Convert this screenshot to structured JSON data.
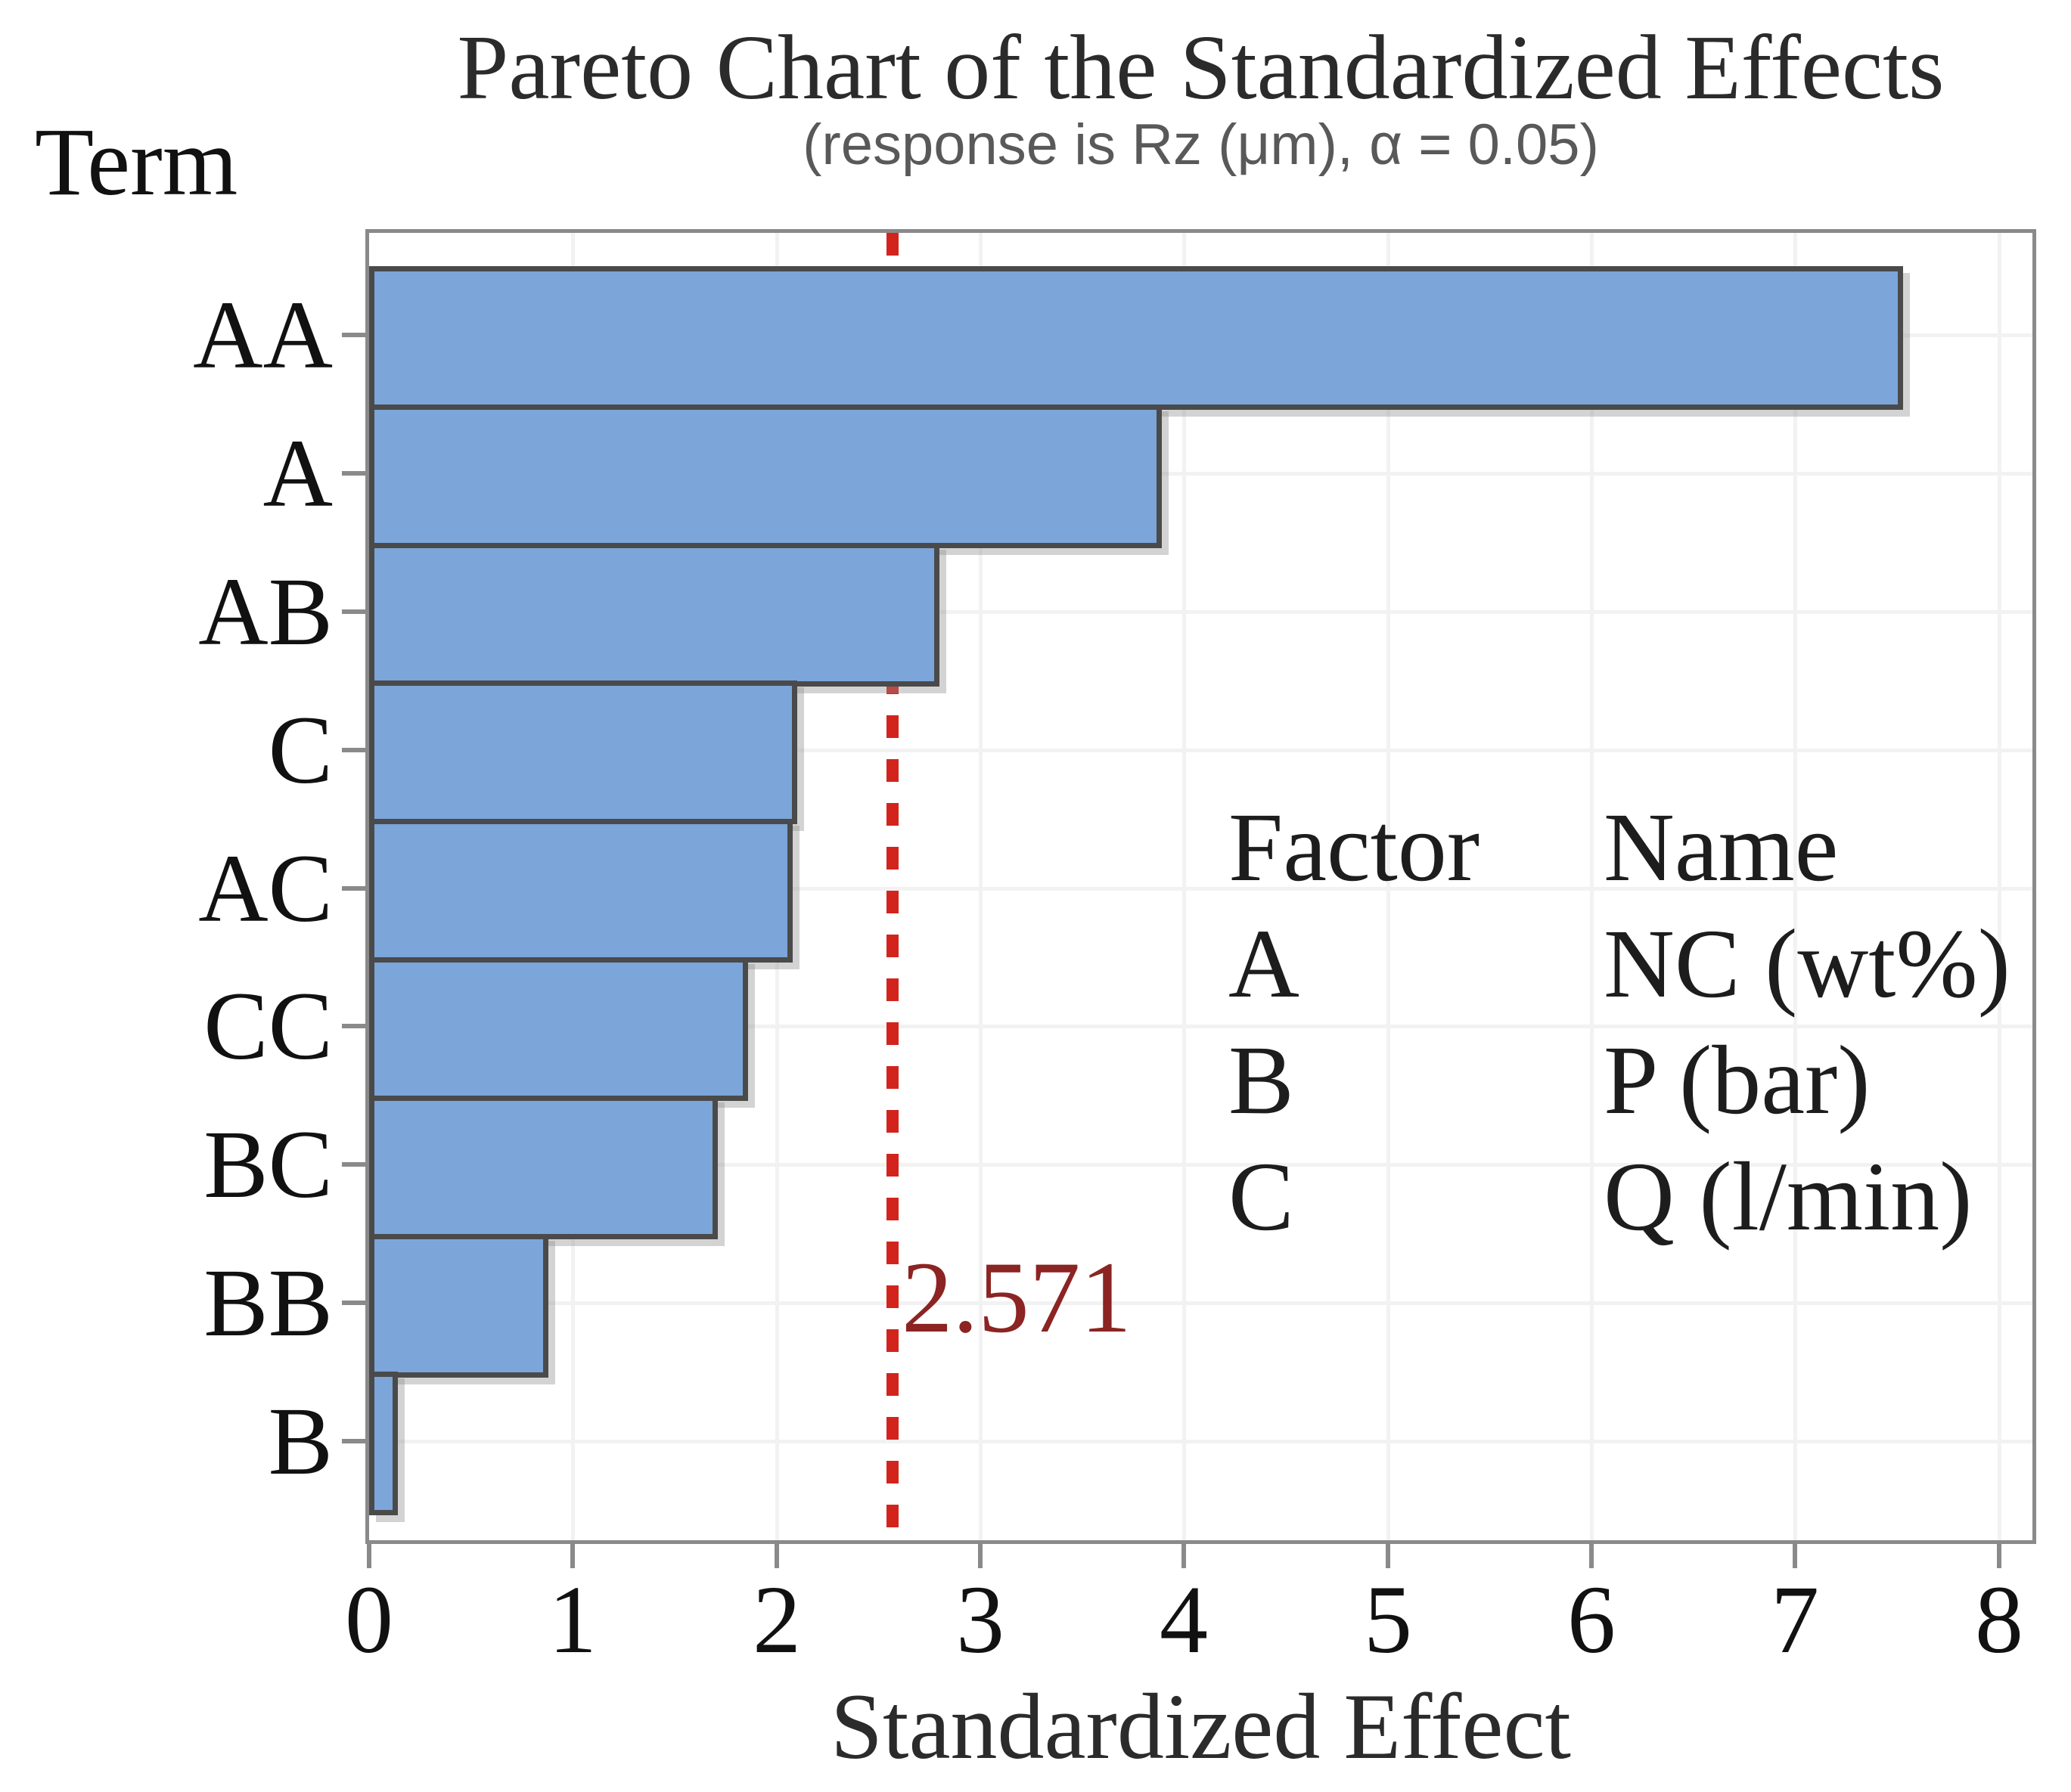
{
  "chart_data": {
    "type": "bar",
    "orientation": "horizontal",
    "title": "Pareto Chart of the Standardized Effects",
    "subtitle": "(response is Rz (μm), α = 0.05)",
    "term_label": "Term",
    "xlabel": "Standardized Effect",
    "categories": [
      "AA",
      "A",
      "AB",
      "C",
      "AC",
      "CC",
      "BC",
      "BB",
      "B"
    ],
    "values": [
      7.53,
      3.89,
      2.8,
      2.1,
      2.08,
      1.86,
      1.71,
      0.88,
      0.14
    ],
    "x_ticks": [
      "0",
      "1",
      "2",
      "3",
      "4",
      "5",
      "6",
      "7",
      "8"
    ],
    "xlim": [
      0,
      8.165
    ],
    "grid": true,
    "legend_position": "inside-right",
    "reference_line": {
      "value": 2.571,
      "label": "2.571"
    },
    "legend": {
      "col1_header": "Factor",
      "col2_header": "Name",
      "rows": [
        {
          "factor": "A",
          "name": "NC (wt%)"
        },
        {
          "factor": "B",
          "name": "P (bar)"
        },
        {
          "factor": "C",
          "name": "Q (l/min)"
        }
      ]
    },
    "colors": {
      "bar_fill": "#7ca5d9",
      "bar_border": "#4a4a4a",
      "frame": "#8a8a8a",
      "gridline": "#f2f2f2",
      "reference_line": "#d2241d",
      "reference_label": "#8b2422",
      "subtitle_text": "#595959",
      "text": "#262626"
    }
  }
}
